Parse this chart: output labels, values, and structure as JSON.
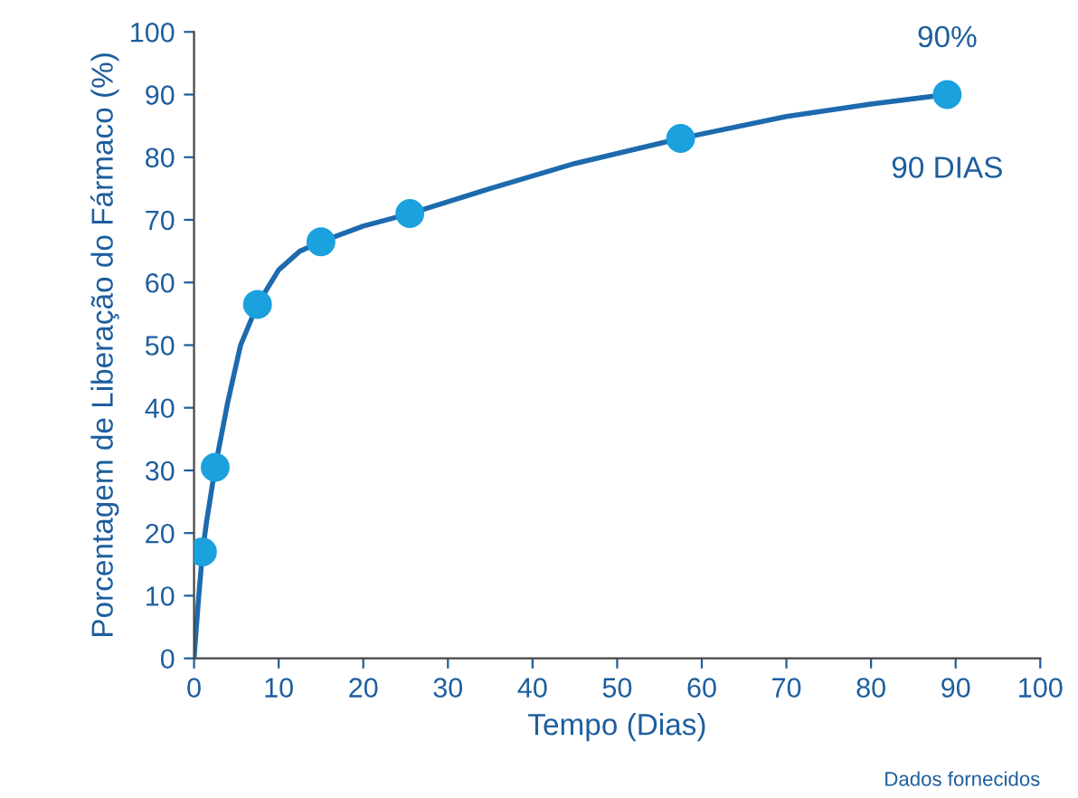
{
  "chart_data": {
    "type": "scatter",
    "xlabel": "Tempo (Dias)",
    "ylabel": "Porcentagem de Liberação do Fármaco (%)",
    "series": [
      {
        "type": "line",
        "color": "#1d6aae",
        "x": [
          0,
          0.5,
          1,
          1.5,
          2.5,
          4,
          5.5,
          7.5,
          10,
          12.5,
          15,
          20,
          25.5,
          35,
          45,
          57.5,
          70,
          80,
          89
        ],
        "values": [
          0,
          9,
          17,
          22,
          30.5,
          41,
          50,
          56.5,
          62,
          65,
          66.5,
          69,
          71,
          75,
          79,
          83,
          86.5,
          88.5,
          90
        ],
        "marker": "none"
      },
      {
        "color": "#1ba1de",
        "x": [
          1,
          2.5,
          7.5,
          15,
          25.5,
          57.5,
          89
        ],
        "values": [
          17,
          30.5,
          56.5,
          66.5,
          71,
          83,
          90
        ],
        "marker": "circle"
      }
    ],
    "annotations": [
      {
        "text": "90%",
        "x": 89,
        "y": 90
      },
      {
        "text": "90 DIAS",
        "x": 89,
        "y": 90
      },
      "Dados fornecidos"
    ],
    "xlim": [
      0,
      100
    ],
    "ylim": [
      0,
      100
    ],
    "xticks": [
      0,
      10,
      20,
      30,
      40,
      50,
      60,
      70,
      80,
      90,
      100
    ],
    "yticks": [
      0,
      10,
      20,
      30,
      40,
      50,
      60,
      70,
      80,
      90,
      100
    ],
    "grid": false,
    "legend": false
  }
}
